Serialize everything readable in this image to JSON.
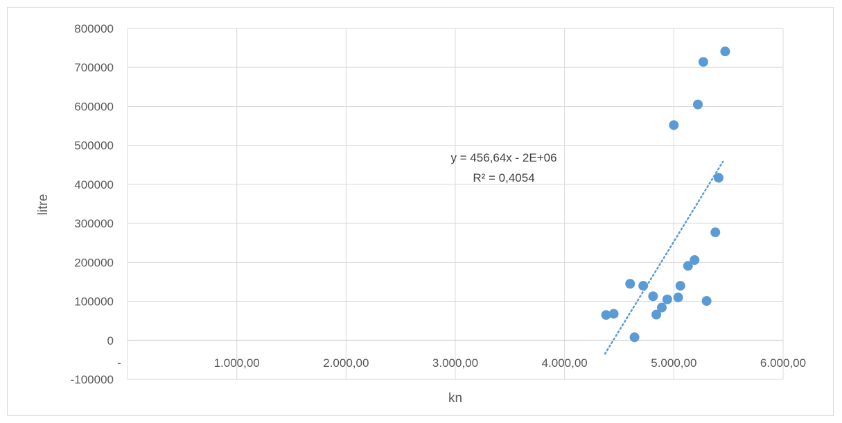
{
  "chart_data": {
    "type": "scatter",
    "title": "",
    "xlabel": "kn",
    "ylabel": "litre",
    "xlim": [
      0,
      6000
    ],
    "ylim": [
      -100000,
      800000
    ],
    "x_ticks": [
      1000,
      2000,
      3000,
      4000,
      5000,
      6000
    ],
    "x_tick_labels": [
      "1.000,00",
      "2.000,00",
      "3.000,00",
      "4.000,00",
      "5.000,00",
      "6.000,00"
    ],
    "x_zero_label": "-",
    "y_ticks": [
      -100000,
      0,
      100000,
      200000,
      300000,
      400000,
      500000,
      600000,
      700000,
      800000
    ],
    "y_tick_labels": [
      "-100000",
      "0",
      "100000",
      "200000",
      "300000",
      "400000",
      "500000",
      "600000",
      "700000",
      "800000"
    ],
    "grid": true,
    "legend": "none",
    "marker_color": "#5b9bd5",
    "series": [
      {
        "x": [
          4380,
          4450,
          4600,
          4640,
          4720,
          4810,
          4840,
          4890,
          4940,
          5000,
          5040,
          5060,
          5130,
          5190,
          5220,
          5270,
          5300,
          5380,
          5410,
          5470
        ],
        "y": [
          65000,
          68000,
          145000,
          8000,
          140000,
          113000,
          66000,
          84000,
          105000,
          552000,
          110000,
          140000,
          191000,
          206000,
          605000,
          714000,
          101000,
          277000,
          417000,
          741000
        ]
      }
    ],
    "trendline": {
      "type": "linear",
      "style": "dotted",
      "x_range": [
        4370,
        5450
      ],
      "slope": 456.64,
      "intercept": -2030000,
      "equation_label": "y = 456,64x - 2E+06",
      "r2_label": "R² = 0,4054"
    }
  }
}
